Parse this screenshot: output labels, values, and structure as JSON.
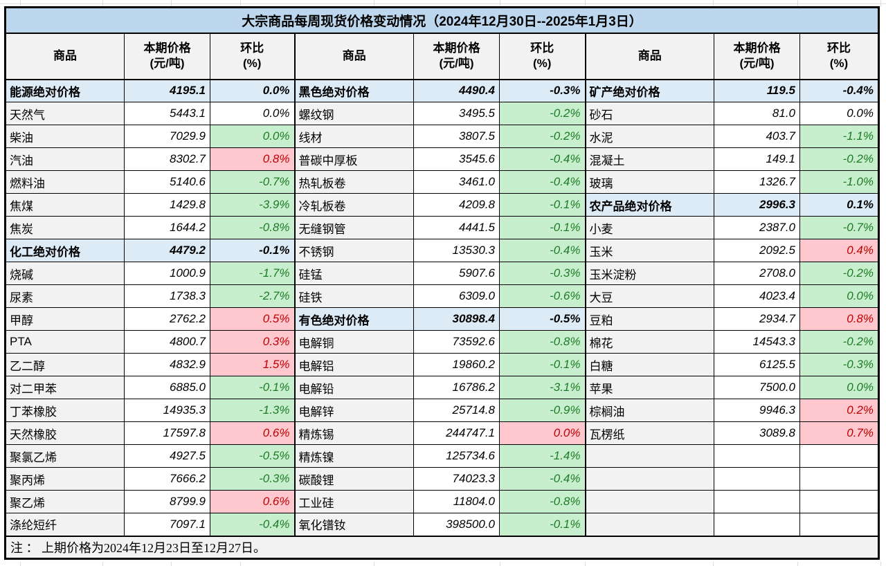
{
  "title": "大宗商品每周现货价格变动情况（2024年12月30日--2025年1月3日）",
  "note": "注 ： 上期价格为2024年12月23日至12月27日。",
  "headers": {
    "commodity": "商品",
    "price_top": "本期价格",
    "price_bottom": "(元/吨)",
    "pct_top": "环比",
    "pct_bottom": "(%)"
  },
  "colors": {
    "title_bg": "#BDD7EE",
    "section_row_bg": "#DDEBF7",
    "header_bg": "#F2F2F2",
    "name_col_bg": "#F2F2F2",
    "increase_bg": "#FFC7CE",
    "increase_text": "#C00000",
    "decrease_bg": "#C7EFCE",
    "decrease_text": "#1E7B25",
    "border": "#000000"
  },
  "groups": [
    {
      "rows": [
        {
          "name": "能源绝对价格",
          "price": "4195.1",
          "pct": "0.0%",
          "style": "section"
        },
        {
          "name": "天然气",
          "price": "5443.1",
          "pct": "0.0%",
          "style": "plain"
        },
        {
          "name": "柴油",
          "price": "7029.9",
          "pct": "0.0%",
          "style": "down"
        },
        {
          "name": "汽油",
          "price": "8302.7",
          "pct": "0.8%",
          "style": "up"
        },
        {
          "name": "燃料油",
          "price": "5140.6",
          "pct": "-0.7%",
          "style": "down"
        },
        {
          "name": "焦煤",
          "price": "1429.8",
          "pct": "-3.9%",
          "style": "down"
        },
        {
          "name": "焦炭",
          "price": "1644.2",
          "pct": "-0.8%",
          "style": "down"
        },
        {
          "name": "化工绝对价格",
          "price": "4479.2",
          "pct": "-0.1%",
          "style": "section"
        },
        {
          "name": "烧碱",
          "price": "1000.9",
          "pct": "-1.7%",
          "style": "down"
        },
        {
          "name": "尿素",
          "price": "1738.3",
          "pct": "-2.7%",
          "style": "down"
        },
        {
          "name": "甲醇",
          "price": "2762.2",
          "pct": "0.5%",
          "style": "up"
        },
        {
          "name": "PTA",
          "price": "4800.7",
          "pct": "0.3%",
          "style": "up"
        },
        {
          "name": "乙二醇",
          "price": "4832.9",
          "pct": "1.5%",
          "style": "up"
        },
        {
          "name": "对二甲苯",
          "price": "6885.0",
          "pct": "-0.1%",
          "style": "down"
        },
        {
          "name": "丁苯橡胶",
          "price": "14935.3",
          "pct": "-1.3%",
          "style": "down"
        },
        {
          "name": "天然橡胶",
          "price": "17597.8",
          "pct": "0.6%",
          "style": "up"
        },
        {
          "name": "聚氯乙烯",
          "price": "4927.5",
          "pct": "-0.5%",
          "style": "down"
        },
        {
          "name": "聚丙烯",
          "price": "7666.2",
          "pct": "-0.3%",
          "style": "down"
        },
        {
          "name": "聚乙烯",
          "price": "8799.9",
          "pct": "0.6%",
          "style": "up"
        },
        {
          "name": "涤纶短纤",
          "price": "7097.1",
          "pct": "-0.4%",
          "style": "down"
        }
      ]
    },
    {
      "rows": [
        {
          "name": "黑色绝对价格",
          "price": "4490.4",
          "pct": "-0.3%",
          "style": "section"
        },
        {
          "name": "螺纹钢",
          "price": "3495.5",
          "pct": "-0.2%",
          "style": "down"
        },
        {
          "name": "线材",
          "price": "3807.5",
          "pct": "-0.2%",
          "style": "down"
        },
        {
          "name": "普碳中厚板",
          "price": "3545.6",
          "pct": "-0.4%",
          "style": "down"
        },
        {
          "name": "热轧板卷",
          "price": "3461.0",
          "pct": "-0.4%",
          "style": "down"
        },
        {
          "name": "冷轧板卷",
          "price": "4209.8",
          "pct": "-0.1%",
          "style": "down"
        },
        {
          "name": "无缝钢管",
          "price": "4441.5",
          "pct": "-0.1%",
          "style": "down"
        },
        {
          "name": "不锈钢",
          "price": "13530.3",
          "pct": "-0.4%",
          "style": "down"
        },
        {
          "name": "硅锰",
          "price": "5907.6",
          "pct": "-0.3%",
          "style": "down"
        },
        {
          "name": "硅铁",
          "price": "6309.0",
          "pct": "-0.6%",
          "style": "down"
        },
        {
          "name": "有色绝对价格",
          "price": "30898.4",
          "pct": "-0.5%",
          "style": "section"
        },
        {
          "name": "电解铜",
          "price": "73592.6",
          "pct": "-0.8%",
          "style": "down"
        },
        {
          "name": "电解铝",
          "price": "19860.2",
          "pct": "-0.1%",
          "style": "down"
        },
        {
          "name": "电解铅",
          "price": "16786.2",
          "pct": "-3.1%",
          "style": "down"
        },
        {
          "name": "电解锌",
          "price": "25714.8",
          "pct": "-0.9%",
          "style": "down"
        },
        {
          "name": "精炼锡",
          "price": "244747.1",
          "pct": "0.0%",
          "style": "up"
        },
        {
          "name": "精炼镍",
          "price": "125734.6",
          "pct": "-1.4%",
          "style": "down"
        },
        {
          "name": "碳酸锂",
          "price": "74023.3",
          "pct": "-0.4%",
          "style": "down"
        },
        {
          "name": "工业硅",
          "price": "11804.0",
          "pct": "-0.8%",
          "style": "down"
        },
        {
          "name": "氧化镨钕",
          "price": "398500.0",
          "pct": "-0.1%",
          "style": "down"
        }
      ]
    },
    {
      "rows": [
        {
          "name": "矿产绝对价格",
          "price": "119.5",
          "pct": "-0.4%",
          "style": "section"
        },
        {
          "name": "砂石",
          "price": "81.0",
          "pct": "0.0%",
          "style": "plain"
        },
        {
          "name": "水泥",
          "price": "403.7",
          "pct": "-1.1%",
          "style": "down"
        },
        {
          "name": "混凝土",
          "price": "149.1",
          "pct": "-0.2%",
          "style": "down"
        },
        {
          "name": "玻璃",
          "price": "1326.7",
          "pct": "-1.0%",
          "style": "down"
        },
        {
          "name": "农产品绝对价格",
          "price": "2996.3",
          "pct": "0.1%",
          "style": "section"
        },
        {
          "name": "小麦",
          "price": "2387.0",
          "pct": "-0.7%",
          "style": "down"
        },
        {
          "name": "玉米",
          "price": "2092.5",
          "pct": "0.4%",
          "style": "up"
        },
        {
          "name": "玉米淀粉",
          "price": "2708.0",
          "pct": "-0.2%",
          "style": "down"
        },
        {
          "name": "大豆",
          "price": "4023.4",
          "pct": "0.0%",
          "style": "down"
        },
        {
          "name": "豆粕",
          "price": "2934.7",
          "pct": "0.8%",
          "style": "up"
        },
        {
          "name": "棉花",
          "price": "14543.3",
          "pct": "-0.2%",
          "style": "down"
        },
        {
          "name": "白糖",
          "price": "6125.5",
          "pct": "-0.3%",
          "style": "down"
        },
        {
          "name": "苹果",
          "price": "7500.0",
          "pct": "0.0%",
          "style": "down"
        },
        {
          "name": "棕榈油",
          "price": "9946.3",
          "pct": "0.2%",
          "style": "up"
        },
        {
          "name": "瓦楞纸",
          "price": "3089.8",
          "pct": "0.7%",
          "style": "up"
        },
        {
          "name": "",
          "price": "",
          "pct": "",
          "style": "empty"
        },
        {
          "name": "",
          "price": "",
          "pct": "",
          "style": "empty"
        },
        {
          "name": "",
          "price": "",
          "pct": "",
          "style": "empty"
        },
        {
          "name": "",
          "price": "",
          "pct": "",
          "style": "empty"
        }
      ]
    }
  ]
}
